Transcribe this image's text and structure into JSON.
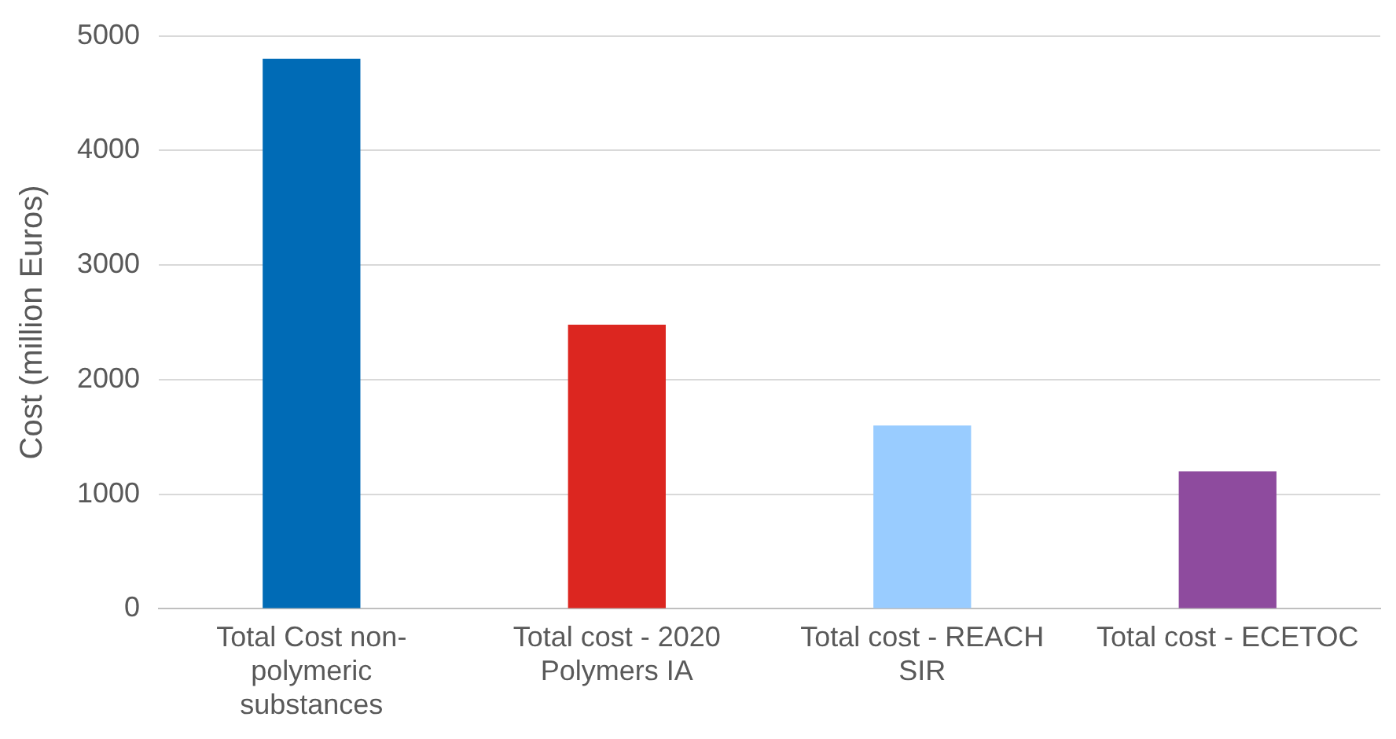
{
  "chart_data": {
    "type": "bar",
    "ylabel": "Cost (million Euros)",
    "categories": [
      "Total Cost non-polymeric substances",
      "Total cost - 2020 Polymers IA",
      "Total cost - REACH SIR",
      "Total cost - ECETOC"
    ],
    "values": [
      4800,
      2480,
      1600,
      1200
    ],
    "colors": [
      "#006bb6",
      "#dc2620",
      "#99ccff",
      "#8e4b9e"
    ],
    "ylim": [
      0,
      5000
    ],
    "yticks": [
      0,
      1000,
      2000,
      3000,
      4000,
      5000
    ],
    "grid": "y",
    "legend": false
  }
}
